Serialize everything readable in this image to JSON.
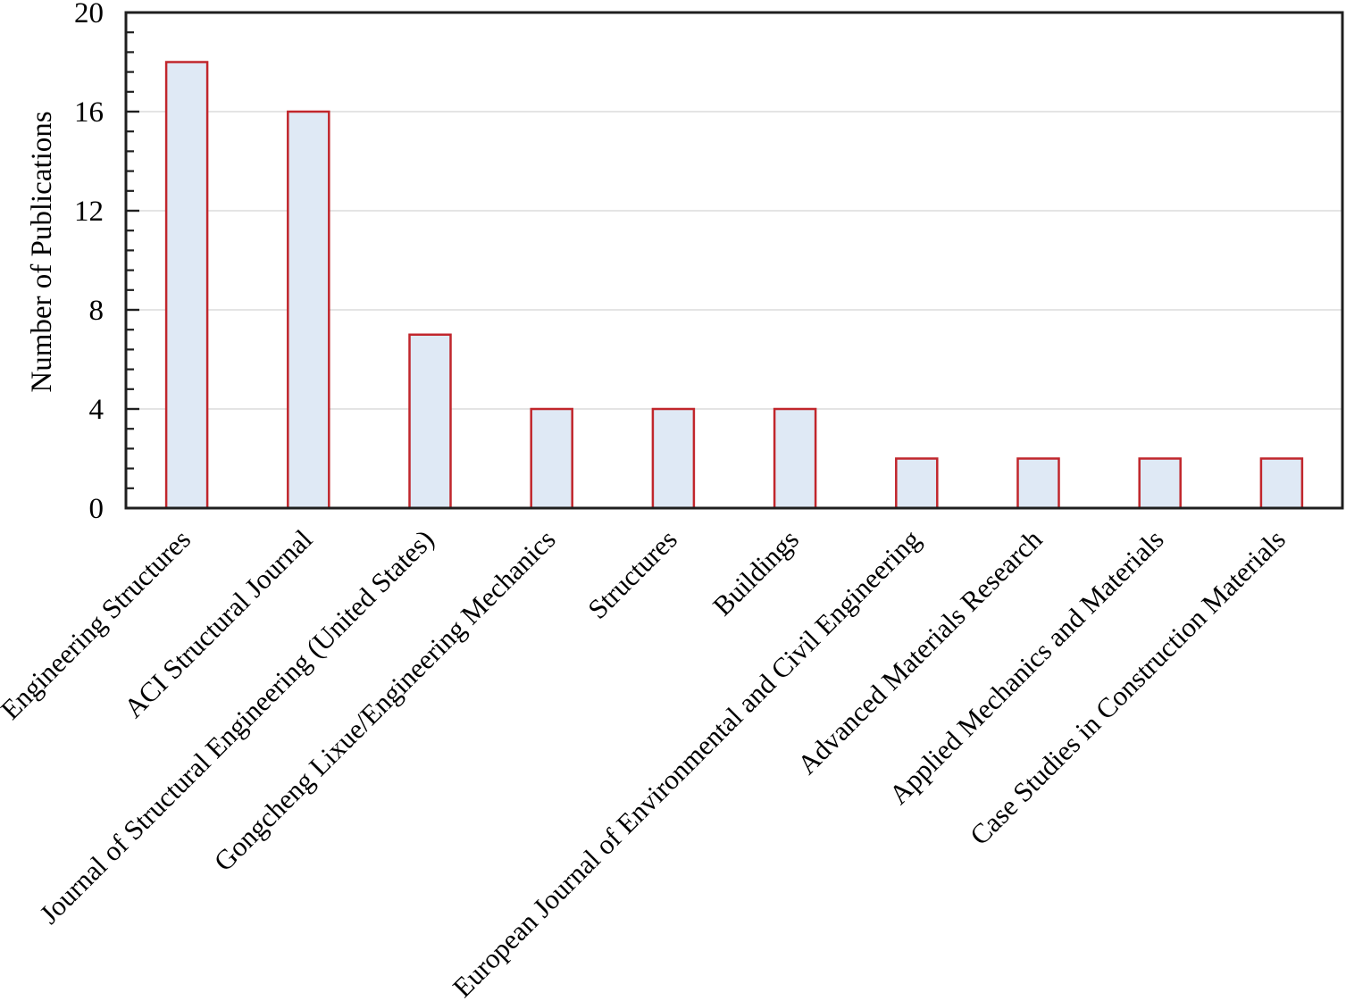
{
  "page": {
    "background": "#FFFFFF"
  },
  "chart_data": {
    "type": "bar",
    "ylabel": "Number of Publications",
    "categories": [
      "Engineering Structures",
      "ACI Structural Journal",
      "Journal of Structural Engineering (United States)",
      "Gongcheng Lixue/Engineering Mechanics",
      "Structures",
      "Buildings",
      "European Journal of Environmental and Civil Engineering",
      "Advanced Materials Research",
      "Applied Mechanics and Materials",
      "Case Studies in Construction Materials"
    ],
    "values": [
      18,
      16,
      7,
      4,
      4,
      4,
      2,
      2,
      2,
      2
    ],
    "ylim": [
      0,
      20
    ],
    "yticks": [
      0,
      4,
      8,
      12,
      16,
      20
    ],
    "minor_tick_unit": 0.8,
    "grid": "horizontal-major",
    "legend_position": "none",
    "x_label_rotation_deg": -45,
    "colors": {
      "bar_fill": "#DFE9F5",
      "bar_border": "#C1262C",
      "axis": "#1F1F1F",
      "gridline": "#DCDCDC",
      "text": "#000000",
      "background": "#FFFFFF"
    }
  }
}
